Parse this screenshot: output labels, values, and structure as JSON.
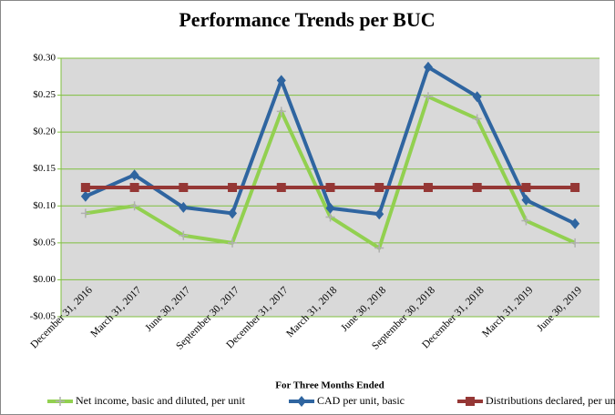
{
  "chart_data": {
    "type": "line",
    "title": "Performance Trends per BUC",
    "x_label": "For Three Months  Ended",
    "categories": [
      "December 31, 2016",
      "March 31, 2017",
      "June 30, 2017",
      "September 30, 2017",
      "December 31, 2017",
      "March 31, 2018",
      "June 30, 2018",
      "September 30, 2018",
      "December 31, 2018",
      "March 31, 2019",
      "June 30, 2019"
    ],
    "series": [
      {
        "name": "Net income, basic and diluted, per unit",
        "color": "#92d050",
        "marker": "plus",
        "values": [
          0.09,
          0.1,
          0.06,
          0.05,
          0.228,
          0.085,
          0.043,
          0.248,
          0.218,
          0.08,
          0.05
        ]
      },
      {
        "name": "CAD per unit, basic",
        "color": "#2f65a0",
        "marker": "diamond",
        "values": [
          0.113,
          0.142,
          0.098,
          0.09,
          0.27,
          0.097,
          0.089,
          0.288,
          0.248,
          0.108,
          0.076
        ]
      },
      {
        "name": "Distributions declared, per unit",
        "color": "#953735",
        "marker": "square",
        "values": [
          0.125,
          0.125,
          0.125,
          0.125,
          0.125,
          0.125,
          0.125,
          0.125,
          0.125,
          0.125,
          0.125
        ]
      }
    ],
    "ylim": [
      -0.05,
      0.3
    ],
    "yticks": [
      {
        "value": -0.05,
        "label": "-$0.05"
      },
      {
        "value": 0,
        "label": "$0.00"
      },
      {
        "value": 0.05,
        "label": "$0.05"
      },
      {
        "value": 0.1,
        "label": "$0.10"
      },
      {
        "value": 0.15,
        "label": "$0.15"
      },
      {
        "value": 0.2,
        "label": "$0.20"
      },
      {
        "value": 0.25,
        "label": "$0.25"
      },
      {
        "value": 0.3,
        "label": "$0.30"
      }
    ],
    "grid": true,
    "legend": "bottom"
  }
}
